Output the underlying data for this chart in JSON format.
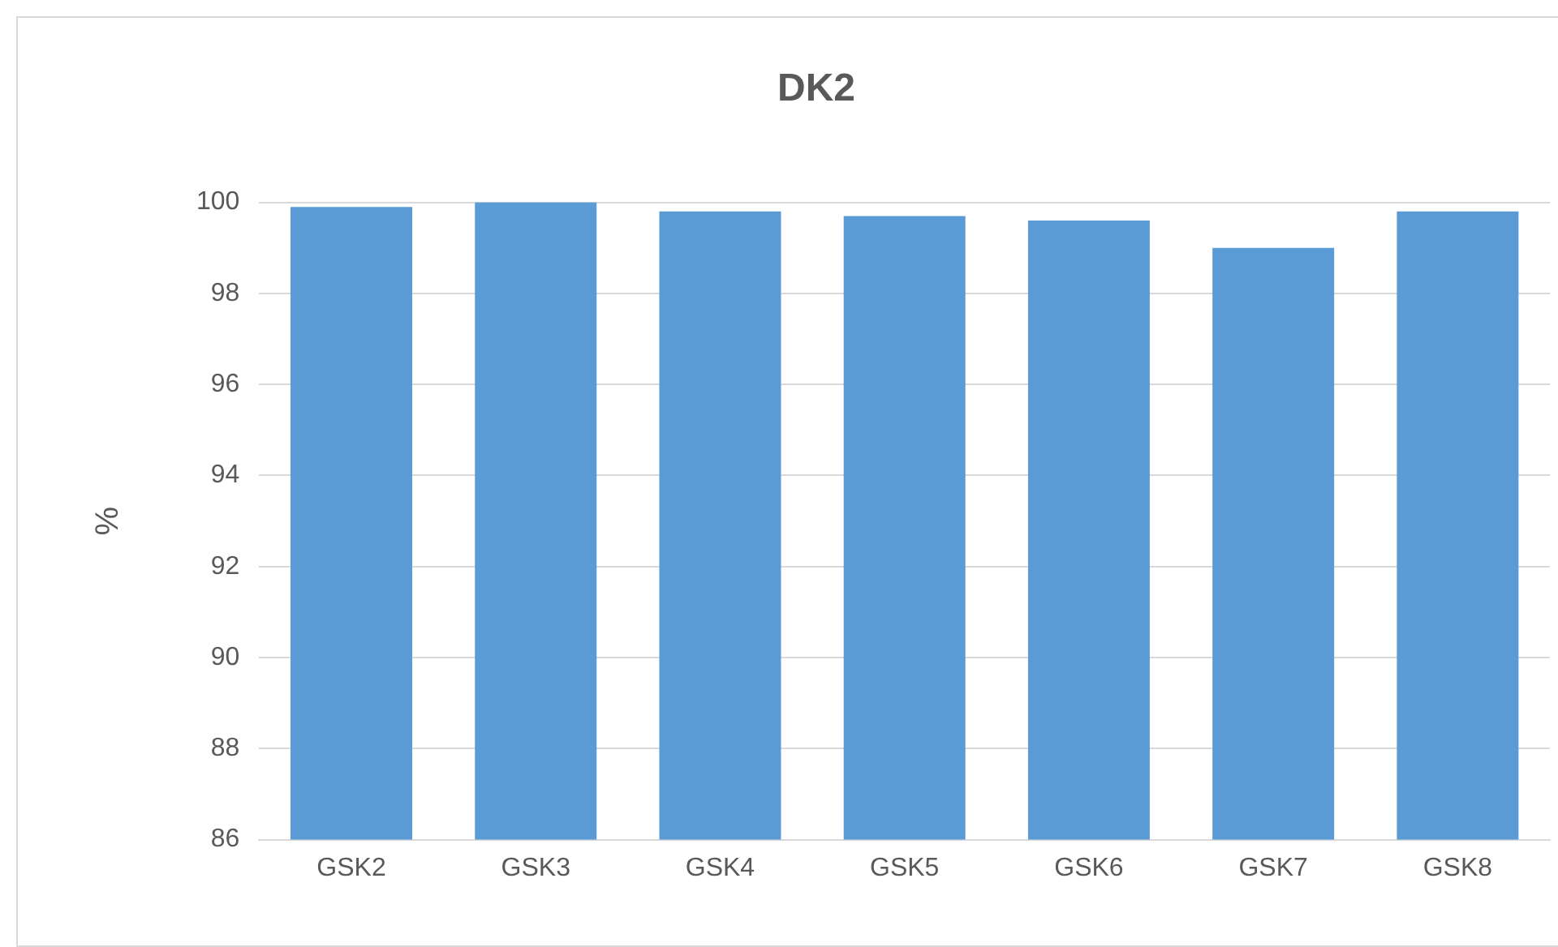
{
  "chart_data": {
    "type": "bar",
    "title": "DK2",
    "ylabel": "%",
    "categories": [
      "GSK2",
      "GSK3",
      "GSK4",
      "GSK5",
      "GSK6",
      "GSK7",
      "GSK8"
    ],
    "values": [
      99.9,
      100,
      99.8,
      99.7,
      99.6,
      99.0,
      99.8
    ],
    "color": "#5b9bd5",
    "ylim": [
      86,
      100
    ],
    "yticks": [
      86,
      88,
      90,
      92,
      94,
      96,
      98,
      100
    ],
    "grid": "y",
    "legend": false
  }
}
